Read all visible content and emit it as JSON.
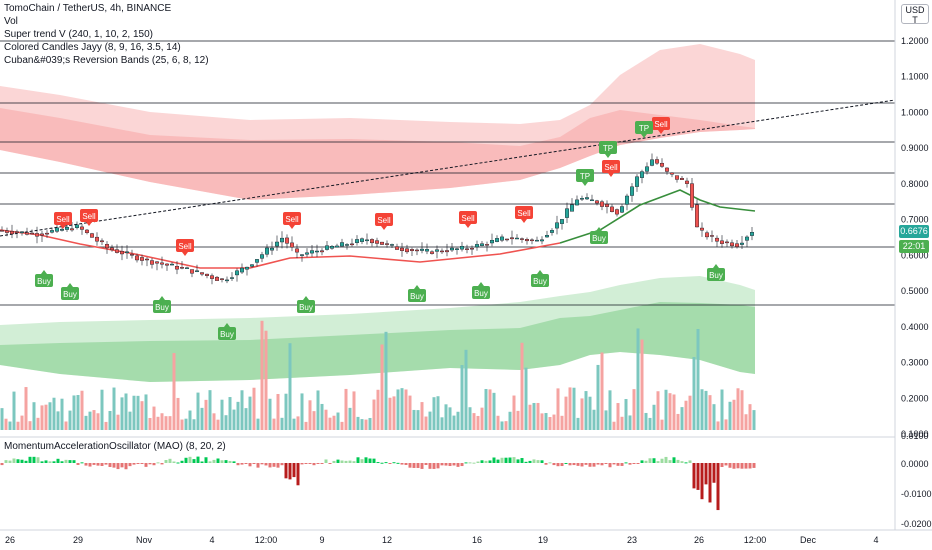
{
  "header": {
    "title": "TomoChain / TetherUS, 4h, BINANCE",
    "indicators": [
      "Vol",
      "Super trend V (240, 1, 10, 2, 150)",
      "Colored Candles Jayy (8, 9, 16, 3.5, 14)",
      "Cuban&#039;s Reversion Bands (25, 6, 8, 12)"
    ]
  },
  "currency": {
    "line1": "USD",
    "line2": "T"
  },
  "price_axis": [
    "1.2000",
    "1.1000",
    "1.0000",
    "0.9000",
    "0.8000",
    "0.7000",
    "0.6000",
    "0.5000",
    "0.4000",
    "0.3000",
    "0.2000",
    "0.1000"
  ],
  "price_tags": {
    "last_price": "0.6676",
    "countdown": "22:01"
  },
  "oscillator": {
    "label": "MomentumAccelerationOscillator (MAO) (8, 20, 2)",
    "axis": [
      "0.0100",
      "0.0000",
      "-0.0100",
      "-0.0200"
    ]
  },
  "time_axis": [
    "26",
    "29",
    "Nov",
    "4",
    "12:00",
    "9",
    "12",
    "16",
    "19",
    "23",
    "26",
    "12:00",
    "Dec",
    "4"
  ],
  "signals": {
    "sell_label": "Sell",
    "buy_label": "Buy",
    "tp_label": "TP"
  },
  "colors": {
    "sell": "#f44336",
    "buy": "#4caf50",
    "upper_band": "#f7a5a5",
    "lower_band": "#7fcd8a",
    "price_tag": "#26a69a",
    "countdown_tag": "#4caf50"
  }
}
